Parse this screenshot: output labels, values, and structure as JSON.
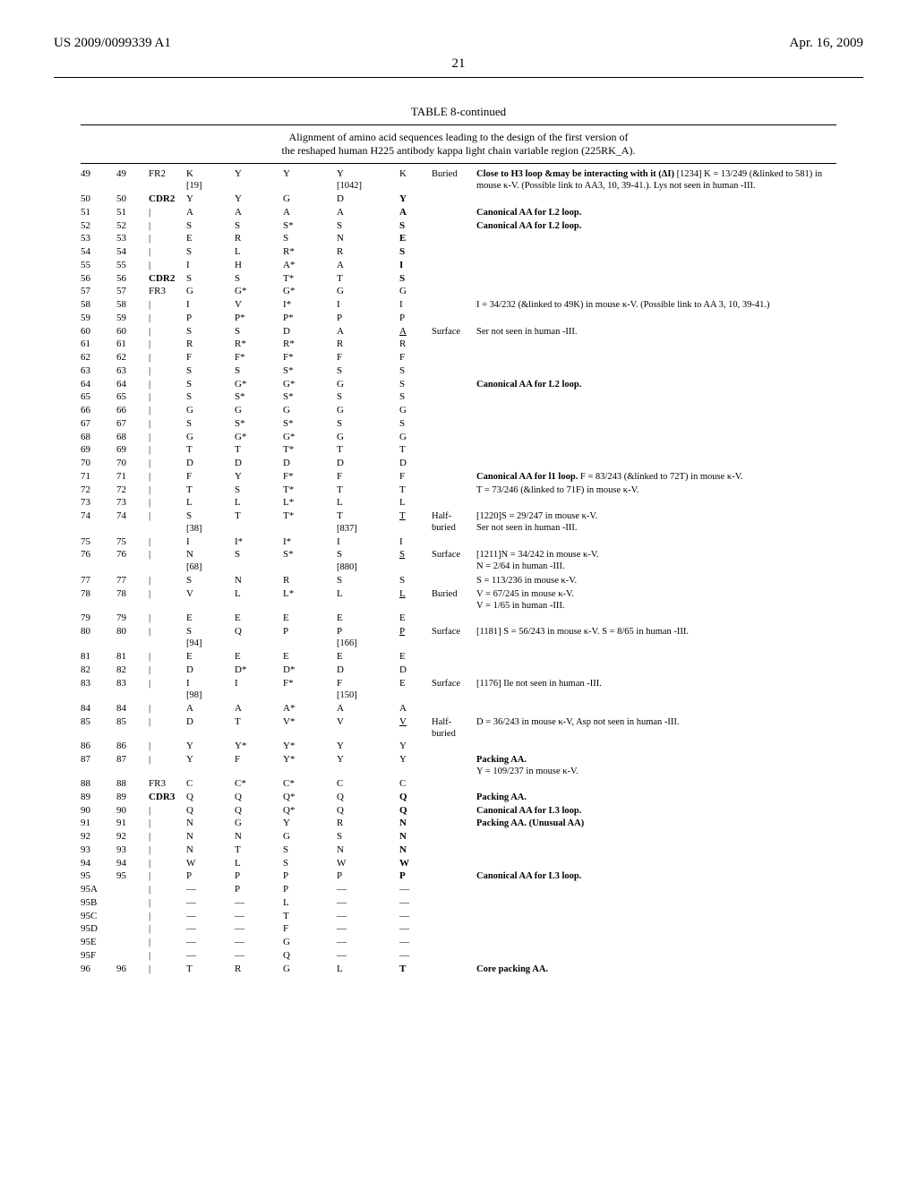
{
  "header": {
    "left": "US 2009/0099339 A1",
    "right": "Apr. 16, 2009"
  },
  "page_number": "21",
  "table": {
    "title": "TABLE 8-continued",
    "caption_line1": "Alignment of amino acid sequences leading to the design of the first version of",
    "caption_line2": "the reshaped human H225 antibody kappa light chain variable region (225RK_A).",
    "rows": [
      {
        "pos1": "49",
        "pos2": "49",
        "region": "FR2",
        "col4": "K",
        "col4_sub": "[19]",
        "col5": "Y",
        "col6": "Y",
        "col7": "Y",
        "col7_sub": "[1042]",
        "col8": "K",
        "loc": "Buried",
        "note": "**Close to H3 loop &may be interacting with it (ΔI)** [1234] K = 13/249 (&linked to 581) in mouse κ-V. (Possible link to AA3, 10, 39-41.). Lys not seen in human -III."
      },
      {
        "pos1": "50",
        "pos2": "50",
        "region": "CDR2",
        "region_bold": true,
        "col4": "Y",
        "col5": "Y",
        "col6": "G",
        "col7": "D",
        "col8": "Y",
        "col8_bold": true
      },
      {
        "pos1": "51",
        "pos2": "51",
        "region": "|",
        "col4": "A",
        "col5": "A",
        "col6": "A",
        "col7": "A",
        "col8": "A",
        "col8_bold": true,
        "note": "**Canonical AA for L2 loop.**"
      },
      {
        "pos1": "52",
        "pos2": "52",
        "region": "|",
        "col4": "S",
        "col5": "S",
        "col6": "S*",
        "col7": "S",
        "col8": "S",
        "col8_bold": true,
        "note": "**Canonical AA for L2 loop.**"
      },
      {
        "pos1": "53",
        "pos2": "53",
        "region": "|",
        "col4": "E",
        "col5": "R",
        "col6": "S",
        "col7": "N",
        "col8": "E",
        "col8_bold": true
      },
      {
        "pos1": "54",
        "pos2": "54",
        "region": "|",
        "col4": "S",
        "col5": "L",
        "col6": "R*",
        "col7": "R",
        "col8": "S",
        "col8_bold": true
      },
      {
        "pos1": "55",
        "pos2": "55",
        "region": "|",
        "col4": "I",
        "col5": "H",
        "col6": "A*",
        "col7": "A",
        "col8": "I",
        "col8_bold": true
      },
      {
        "pos1": "56",
        "pos2": "56",
        "region": "CDR2",
        "region_bold": true,
        "col4": "S",
        "col5": "S",
        "col6": "T*",
        "col7": "T",
        "col8": "S",
        "col8_bold": true
      },
      {
        "pos1": "57",
        "pos2": "57",
        "region": "FR3",
        "col4": "G",
        "col5": "G*",
        "col6": "G*",
        "col7": "G",
        "col8": "G"
      },
      {
        "pos1": "58",
        "pos2": "58",
        "region": "|",
        "col4": "I",
        "col5": "V",
        "col6": "I*",
        "col7": "I",
        "col8": "I",
        "note": "I = 34/232 (&linked to 49K) in mouse κ-V. (Possible link to AA 3, 10, 39-41.)"
      },
      {
        "pos1": "59",
        "pos2": "59",
        "region": "|",
        "col4": "P",
        "col5": "P*",
        "col6": "P*",
        "col7": "P",
        "col8": "P"
      },
      {
        "pos1": "60",
        "pos2": "60",
        "region": "|",
        "col4": "S",
        "col5": "S",
        "col6": "D",
        "col7": "A",
        "col8": "A",
        "col8_ul": true,
        "loc": "Surface",
        "note": "Ser not seen in human -III."
      },
      {
        "pos1": "61",
        "pos2": "61",
        "region": "|",
        "col4": "R",
        "col5": "R*",
        "col6": "R*",
        "col7": "R",
        "col8": "R"
      },
      {
        "pos1": "62",
        "pos2": "62",
        "region": "|",
        "col4": "F",
        "col5": "F*",
        "col6": "F*",
        "col7": "F",
        "col8": "F"
      },
      {
        "pos1": "63",
        "pos2": "63",
        "region": "|",
        "col4": "S",
        "col5": "S",
        "col6": "S*",
        "col7": "S",
        "col8": "S"
      },
      {
        "pos1": "64",
        "pos2": "64",
        "region": "|",
        "col4": "S",
        "col5": "G*",
        "col6": "G*",
        "col7": "G",
        "col8": "S",
        "note": "**Canonical AA for L2 loop.**"
      },
      {
        "pos1": "65",
        "pos2": "65",
        "region": "|",
        "col4": "S",
        "col5": "S*",
        "col6": "S*",
        "col7": "S",
        "col8": "S"
      },
      {
        "pos1": "66",
        "pos2": "66",
        "region": "|",
        "col4": "G",
        "col5": "G",
        "col6": "G",
        "col7": "G",
        "col8": "G"
      },
      {
        "pos1": "67",
        "pos2": "67",
        "region": "|",
        "col4": "S",
        "col5": "S*",
        "col6": "S*",
        "col7": "S",
        "col8": "S"
      },
      {
        "pos1": "68",
        "pos2": "68",
        "region": "|",
        "col4": "G",
        "col5": "G*",
        "col6": "G*",
        "col7": "G",
        "col8": "G"
      },
      {
        "pos1": "69",
        "pos2": "69",
        "region": "|",
        "col4": "T",
        "col5": "T",
        "col6": "T*",
        "col7": "T",
        "col8": "T"
      },
      {
        "pos1": "70",
        "pos2": "70",
        "region": "|",
        "col4": "D",
        "col5": "D",
        "col6": "D",
        "col7": "D",
        "col8": "D"
      },
      {
        "pos1": "71",
        "pos2": "71",
        "region": "|",
        "col4": "F",
        "col5": "Y",
        "col6": "F*",
        "col7": "F",
        "col8": "F",
        "note": "**Canonical AA for l1 loop.** F = 83/243 (&linked to 72T) in mouse κ-V."
      },
      {
        "pos1": "72",
        "pos2": "72",
        "region": "|",
        "col4": "T",
        "col5": "S",
        "col6": "T*",
        "col7": "T",
        "col8": "T",
        "note": "T = 73/246 (&linked to 71F) in mouse κ-V."
      },
      {
        "pos1": "73",
        "pos2": "73",
        "region": "|",
        "col4": "L",
        "col5": "L",
        "col6": "L*",
        "col7": "L",
        "col8": "L"
      },
      {
        "pos1": "74",
        "pos2": "74",
        "region": "|",
        "col4": "S",
        "col4_sub": "[38]",
        "col5": "T",
        "col6": "T*",
        "col7": "T",
        "col7_sub": "[837]",
        "col8": "T",
        "col8_ul": true,
        "loc": "Half-buried",
        "note": "[1220]S = 29/247 in mouse κ-V.\nSer not seen in human -III."
      },
      {
        "pos1": "75",
        "pos2": "75",
        "region": "|",
        "col4": "I",
        "col5": "I*",
        "col6": "I*",
        "col7": "I",
        "col8": "I"
      },
      {
        "pos1": "76",
        "pos2": "76",
        "region": "|",
        "col4": "N",
        "col4_sub": "[68]",
        "col5": "S",
        "col6": "S*",
        "col7": "S",
        "col7_sub": "[880]",
        "col8": "S",
        "col8_ul": true,
        "loc": "Surface",
        "note": "[1211]N = 34/242 in mouse κ-V.\nN = 2/64 in human -III."
      },
      {
        "pos1": "77",
        "pos2": "77",
        "region": "|",
        "col4": "S",
        "col5": "N",
        "col6": "R",
        "col7": "S",
        "col8": "S",
        "note": "S = 113/236 in mouse κ-V."
      },
      {
        "pos1": "78",
        "pos2": "78",
        "region": "|",
        "col4": "V",
        "col5": "L",
        "col6": "L*",
        "col7": "L",
        "col8": "L",
        "col8_ul": true,
        "loc": "Buried",
        "note": "V = 67/245 in mouse κ-V.\nV = 1/65 in human -III."
      },
      {
        "pos1": "79",
        "pos2": "79",
        "region": "|",
        "col4": "E",
        "col5": "E",
        "col6": "E",
        "col7": "E",
        "col8": "E"
      },
      {
        "pos1": "80",
        "pos2": "80",
        "region": "|",
        "col4": "S",
        "col4_sub": "[94]",
        "col5": "Q",
        "col6": "P",
        "col7": "P",
        "col7_sub": "[166]",
        "col8": "P",
        "col8_ul": true,
        "loc": "Surface",
        "note": "[1181] S = 56/243 in mouse κ-V. S = 8/65 in human -III."
      },
      {
        "pos1": "81",
        "pos2": "81",
        "region": "|",
        "col4": "E",
        "col5": "E",
        "col6": "E",
        "col7": "E",
        "col8": "E"
      },
      {
        "pos1": "82",
        "pos2": "82",
        "region": "|",
        "col4": "D",
        "col5": "D*",
        "col6": "D*",
        "col7": "D",
        "col8": "D"
      },
      {
        "pos1": "83",
        "pos2": "83",
        "region": "|",
        "col4": "I",
        "col4_sub": "[98]",
        "col5": "I",
        "col6": "F*",
        "col7": "F",
        "col7_sub": "[150]",
        "col8": "E",
        "loc": "Surface",
        "note": "[1176] Ile not seen in human -III."
      },
      {
        "pos1": "84",
        "pos2": "84",
        "region": "|",
        "col4": "A",
        "col5": "A",
        "col6": "A*",
        "col7": "A",
        "col8": "A"
      },
      {
        "pos1": "85",
        "pos2": "85",
        "region": "|",
        "col4": "D",
        "col5": "T",
        "col6": "V*",
        "col7": "V",
        "col8": "V",
        "col8_ul": true,
        "loc": "Half-buried",
        "note": "D = 36/243 in mouse κ-V, Asp not seen in human -III."
      },
      {
        "pos1": "86",
        "pos2": "86",
        "region": "|",
        "col4": "Y",
        "col5": "Y*",
        "col6": "Y*",
        "col7": "Y",
        "col8": "Y"
      },
      {
        "pos1": "87",
        "pos2": "87",
        "region": "|",
        "col4": "Y",
        "col5": "F",
        "col6": "Y*",
        "col7": "Y",
        "col8": "Y",
        "note": "**Packing AA.**\nY = 109/237 in mouse κ-V."
      },
      {
        "pos1": "88",
        "pos2": "88",
        "region": "FR3",
        "col4": "C",
        "col5": "C*",
        "col6": "C*",
        "col7": "C",
        "col8": "C"
      },
      {
        "pos1": "89",
        "pos2": "89",
        "region": "CDR3",
        "region_bold": true,
        "col4": "Q",
        "col5": "Q",
        "col6": "Q*",
        "col7": "Q",
        "col8": "Q",
        "col8_bold": true,
        "note": "**Packing AA.**"
      },
      {
        "pos1": "90",
        "pos2": "90",
        "region": "|",
        "col4": "Q",
        "col5": "Q",
        "col6": "Q*",
        "col7": "Q",
        "col8": "Q",
        "col8_bold": true,
        "note": "**Canonical AA for L3 loop.**"
      },
      {
        "pos1": "91",
        "pos2": "91",
        "region": "|",
        "col4": "N",
        "col5": "G",
        "col6": "Y",
        "col7": "R",
        "col8": "N",
        "col8_bold": true,
        "note": "**Packing AA. (Unusual AA)**"
      },
      {
        "pos1": "92",
        "pos2": "92",
        "region": "|",
        "col4": "N",
        "col5": "N",
        "col6": "G",
        "col7": "S",
        "col8": "N",
        "col8_bold": true
      },
      {
        "pos1": "93",
        "pos2": "93",
        "region": "|",
        "col4": "N",
        "col5": "T",
        "col6": "S",
        "col7": "N",
        "col8": "N",
        "col8_bold": true
      },
      {
        "pos1": "94",
        "pos2": "94",
        "region": "|",
        "col4": "W",
        "col5": "L",
        "col6": "S",
        "col7": "W",
        "col8": "W",
        "col8_bold": true
      },
      {
        "pos1": "95",
        "pos2": "95",
        "region": "|",
        "col4": "P",
        "col5": "P",
        "col6": "P",
        "col7": "P",
        "col8": "P",
        "col8_bold": true,
        "note": "**Canonical AA for L3 loop.**"
      },
      {
        "pos1": "95A",
        "pos2": "",
        "region": "|",
        "col4": "—",
        "col5": "P",
        "col6": "P",
        "col7": "—",
        "col8": "—"
      },
      {
        "pos1": "95B",
        "pos2": "",
        "region": "|",
        "col4": "—",
        "col5": "—",
        "col6": "L",
        "col7": "—",
        "col8": "—"
      },
      {
        "pos1": "95C",
        "pos2": "",
        "region": "|",
        "col4": "—",
        "col5": "—",
        "col6": "T",
        "col7": "—",
        "col8": "—"
      },
      {
        "pos1": "95D",
        "pos2": "",
        "region": "|",
        "col4": "—",
        "col5": "—",
        "col6": "F",
        "col7": "—",
        "col8": "—"
      },
      {
        "pos1": "95E",
        "pos2": "",
        "region": "|",
        "col4": "—",
        "col5": "—",
        "col6": "G",
        "col7": "—",
        "col8": "—"
      },
      {
        "pos1": "95F",
        "pos2": "",
        "region": "|",
        "col4": "—",
        "col5": "—",
        "col6": "Q",
        "col7": "—",
        "col8": "—"
      },
      {
        "pos1": "96",
        "pos2": "96",
        "region": "|",
        "col4": "T",
        "col5": "R",
        "col6": "G",
        "col7": "L",
        "col8": "T",
        "col8_bold": true,
        "note": "**Core packing AA.**"
      }
    ]
  }
}
